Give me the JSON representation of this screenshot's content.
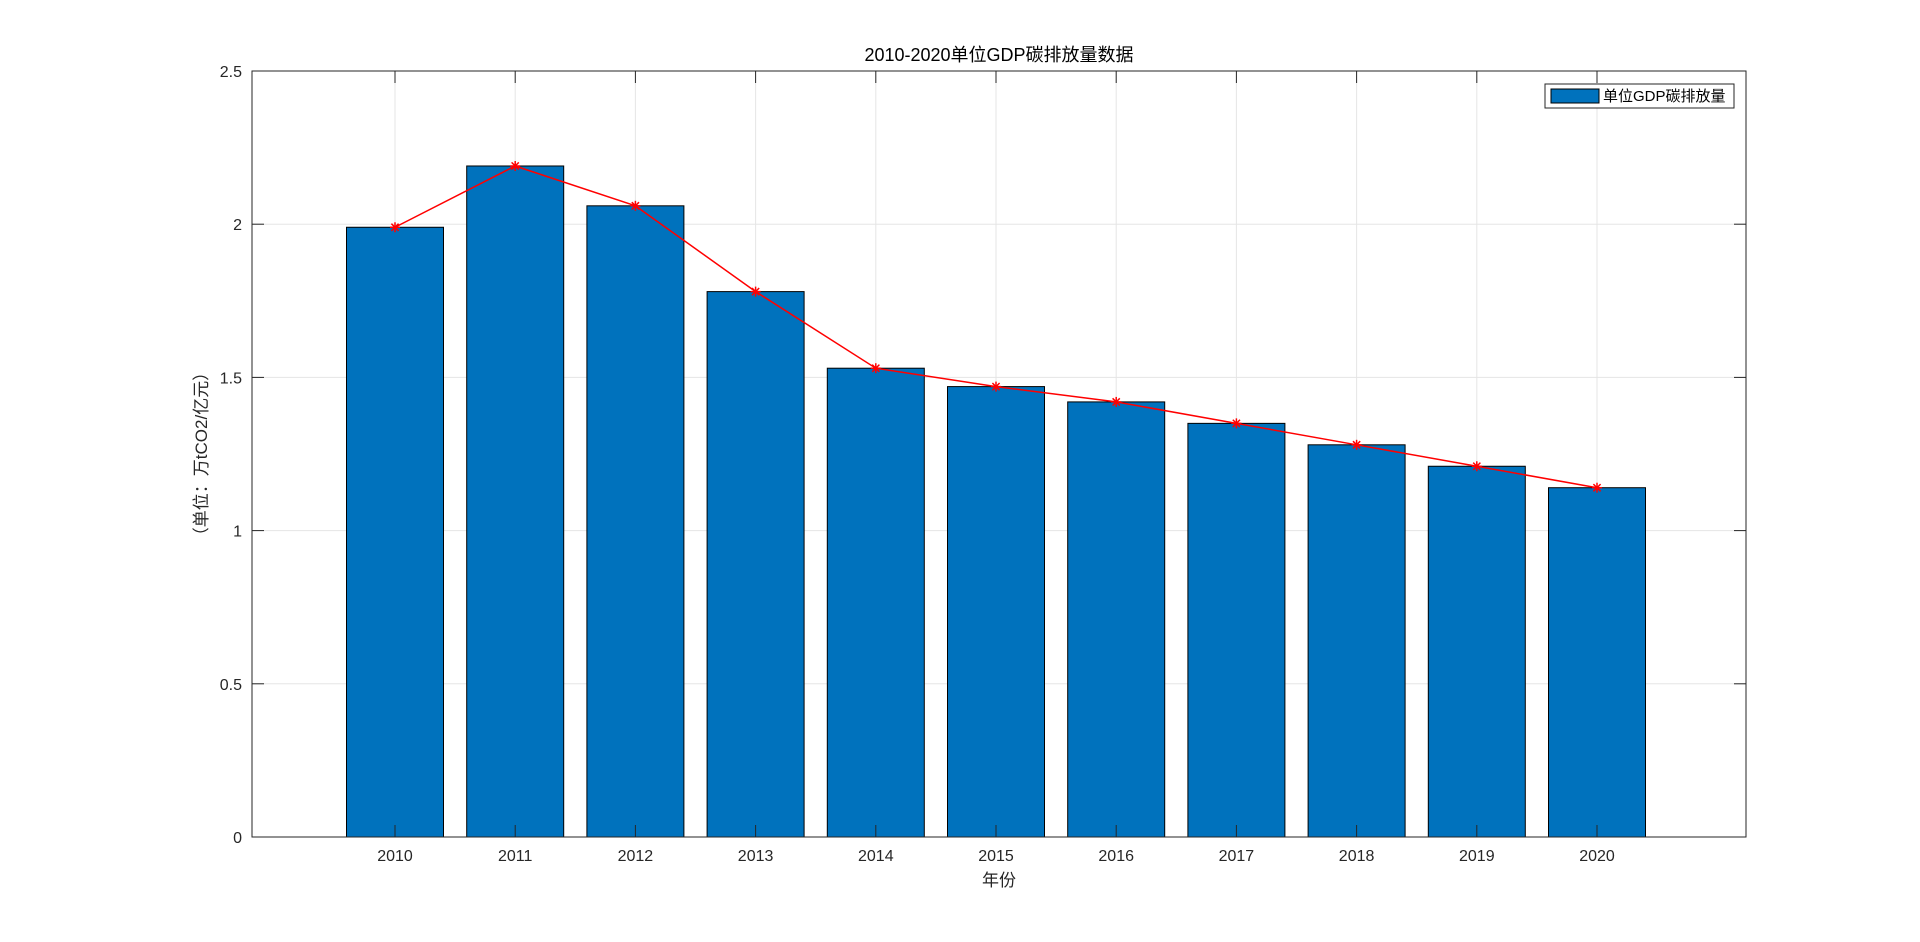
{
  "chart_data": {
    "type": "bar",
    "title": "2010-2020单位GDP碳排放量数据",
    "xlabel": "年份",
    "ylabel": "（单位：万tCO2/亿元）",
    "categories": [
      "2010",
      "2011",
      "2012",
      "2013",
      "2014",
      "2015",
      "2016",
      "2017",
      "2018",
      "2019",
      "2020"
    ],
    "series": [
      {
        "name": "单位GDP碳排放量",
        "type": "bar",
        "values": [
          1.99,
          2.19,
          2.06,
          1.78,
          1.53,
          1.47,
          1.42,
          1.35,
          1.28,
          1.21,
          1.14
        ]
      },
      {
        "type": "line",
        "marker": "*",
        "values": [
          1.99,
          2.19,
          2.06,
          1.78,
          1.53,
          1.47,
          1.42,
          1.35,
          1.28,
          1.21,
          1.14
        ]
      }
    ],
    "ylim": [
      0,
      2.5
    ],
    "yticks": [
      "0",
      "0.5",
      "1",
      "1.5",
      "2",
      "2.5"
    ],
    "grid": true,
    "legend_position": "top-right",
    "colors": {
      "bar": "#0072BD",
      "line": "#FF0000",
      "grid": "#e5e5e5",
      "axis": "#262626"
    }
  }
}
